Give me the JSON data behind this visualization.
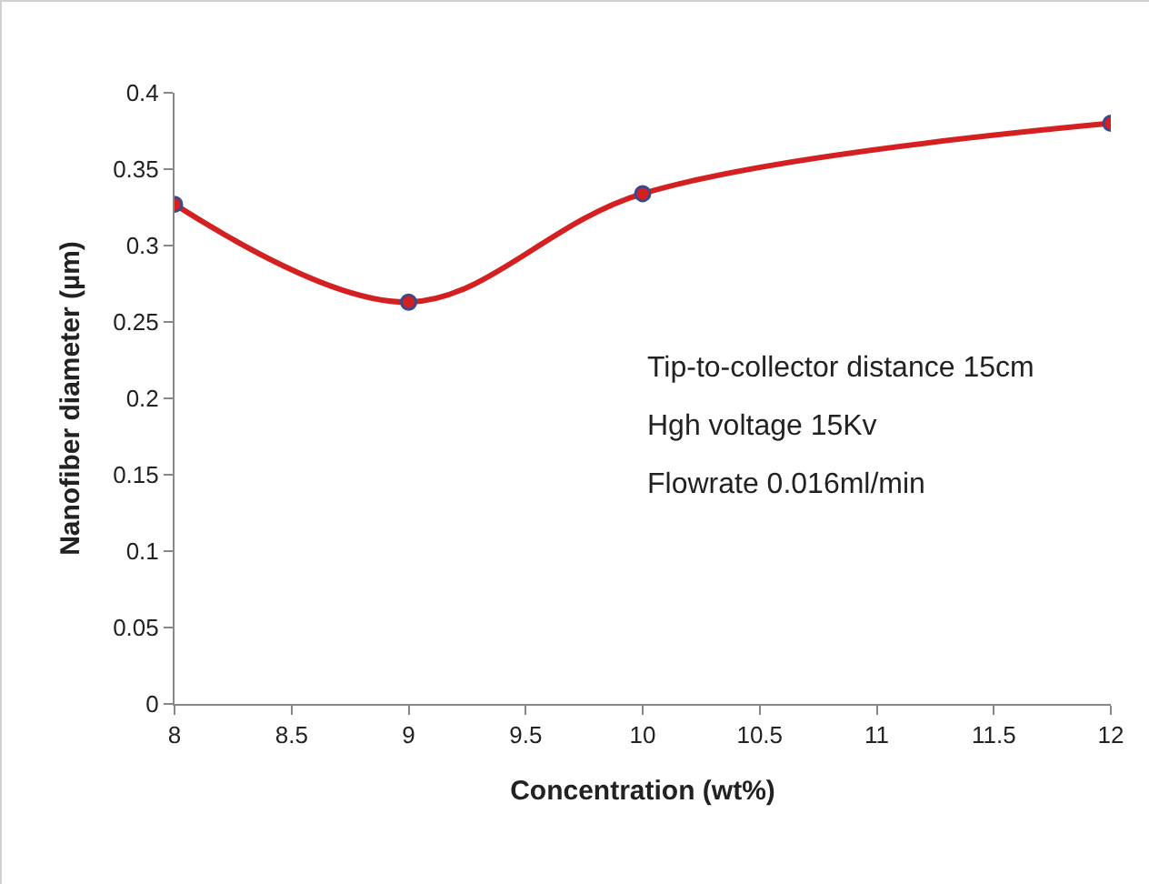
{
  "chart_data": {
    "type": "line",
    "xlabel": "Concentration (wt%)",
    "ylabel": "Nanofiber diameter (µm)",
    "x": [
      8,
      9,
      10,
      12
    ],
    "series": [
      {
        "color": "#d42020",
        "values": [
          0.327,
          0.263,
          0.334,
          0.38
        ]
      }
    ],
    "xlim": [
      8,
      12
    ],
    "xticks": [
      8,
      8.5,
      9,
      9.5,
      10,
      10.5,
      11,
      11.5,
      12
    ],
    "ylim": [
      0,
      0.4
    ],
    "yticks": [
      0,
      0.05,
      0.1,
      0.15,
      0.2,
      0.25,
      0.3,
      0.35,
      0.4
    ],
    "grid": false,
    "marker": "circle",
    "line_style": "solid",
    "annotations": [
      "Tip-to-collector distance 15cm",
      "Hgh voltage 15Kv",
      "Flowrate 0.016ml/min"
    ]
  }
}
